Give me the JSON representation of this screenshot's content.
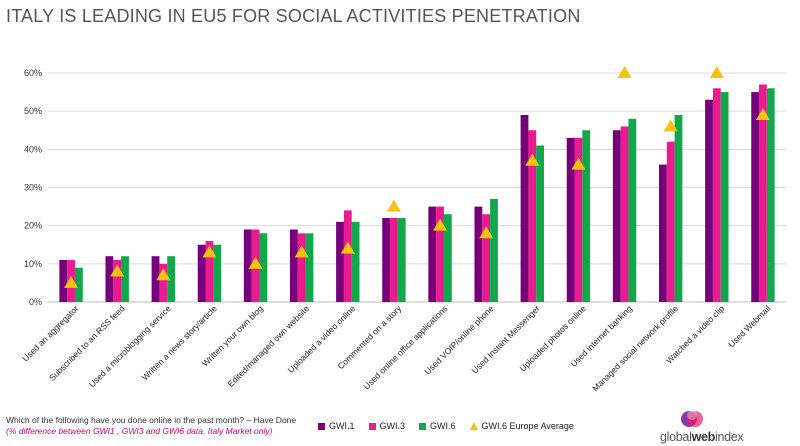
{
  "title": "ITALY IS LEADING IN EU5 FOR SOCIAL ACTIVITIES PENETRATION",
  "footer": {
    "question": "Which of the following have you done online in the past month? – Have Done",
    "note": "(% difference between GWI1 , GWI3 and GWI6 data. Italy Market only)"
  },
  "brand": {
    "prefix": "global",
    "middle": "web",
    "suffix": "index"
  },
  "colors": {
    "gwi1": "#76007a",
    "gwi3": "#ea1a8f",
    "gwi6": "#10a84a",
    "europe_avg": "#f7c20e",
    "grid": "#d9d9d9"
  },
  "chart_data": {
    "type": "bar",
    "title": "ITALY IS LEADING IN EU5 FOR SOCIAL ACTIVITIES PENETRATION",
    "y_ticks": [
      "0%",
      "10%",
      "20%",
      "30%",
      "40%",
      "50%",
      "60%"
    ],
    "ylim": [
      0,
      60
    ],
    "grid": true,
    "legend_position": "bottom",
    "categories": [
      "Used an aggregator",
      "Subscribed to an RSS feed",
      "Used a microblogging service",
      "Written a news story/article",
      "Written your own blog",
      "Edited/managed own website",
      "Uploaded a video online",
      "Commented on a story",
      "Used online office applications",
      "Used VOIP/online phone",
      "Used Instant Messenger",
      "Uploaded photos online",
      "Used internet banking",
      "Managed social network profile",
      "Watched a video clip",
      "Used Webmail"
    ],
    "series": [
      {
        "name": "GWI.1",
        "type": "bar",
        "values": [
          11,
          12,
          12,
          15,
          19,
          19,
          21,
          22,
          25,
          25,
          49,
          43,
          45,
          36,
          53,
          55
        ]
      },
      {
        "name": "GWI.3",
        "type": "bar",
        "values": [
          11,
          11,
          10,
          16,
          19,
          18,
          24,
          22,
          25,
          23,
          45,
          43,
          46,
          42,
          56,
          57
        ]
      },
      {
        "name": "GWI.6",
        "type": "bar",
        "values": [
          9,
          12,
          12,
          15,
          18,
          18,
          21,
          22,
          23,
          27,
          41,
          45,
          48,
          49,
          55,
          56
        ]
      },
      {
        "name": "GWI.6 Europe Average",
        "type": "marker",
        "values": [
          5,
          8,
          7,
          13,
          10,
          13,
          14,
          25,
          20,
          18,
          37,
          36,
          60,
          46,
          60,
          49
        ]
      }
    ]
  }
}
